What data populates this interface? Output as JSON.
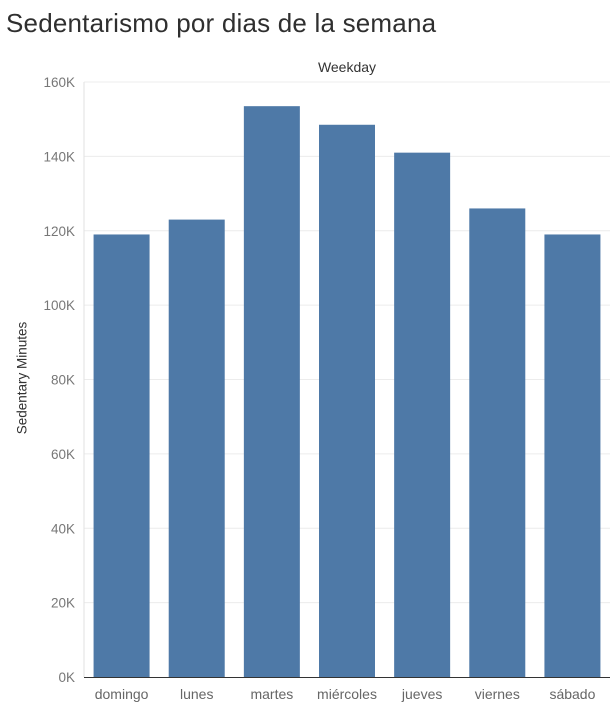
{
  "title": "Sedentarismo por dias de la semana",
  "chart_data": {
    "type": "bar",
    "column_header": "Weekday",
    "ylabel": "Sedentary Minutes",
    "xlabel": "",
    "categories": [
      "domingo",
      "lunes",
      "martes",
      "miércoles",
      "jueves",
      "viernes",
      "sábado"
    ],
    "values": [
      119000,
      123000,
      153500,
      148500,
      141000,
      126000,
      119000
    ],
    "ylim": [
      0,
      160000
    ],
    "yticks": [
      0,
      20000,
      40000,
      60000,
      80000,
      100000,
      120000,
      140000,
      160000
    ],
    "ytick_labels": [
      "0K",
      "20K",
      "40K",
      "60K",
      "80K",
      "100K",
      "120K",
      "140K",
      "160K"
    ],
    "bar_color": "#4e79a7",
    "grid": true,
    "legend": "none"
  }
}
